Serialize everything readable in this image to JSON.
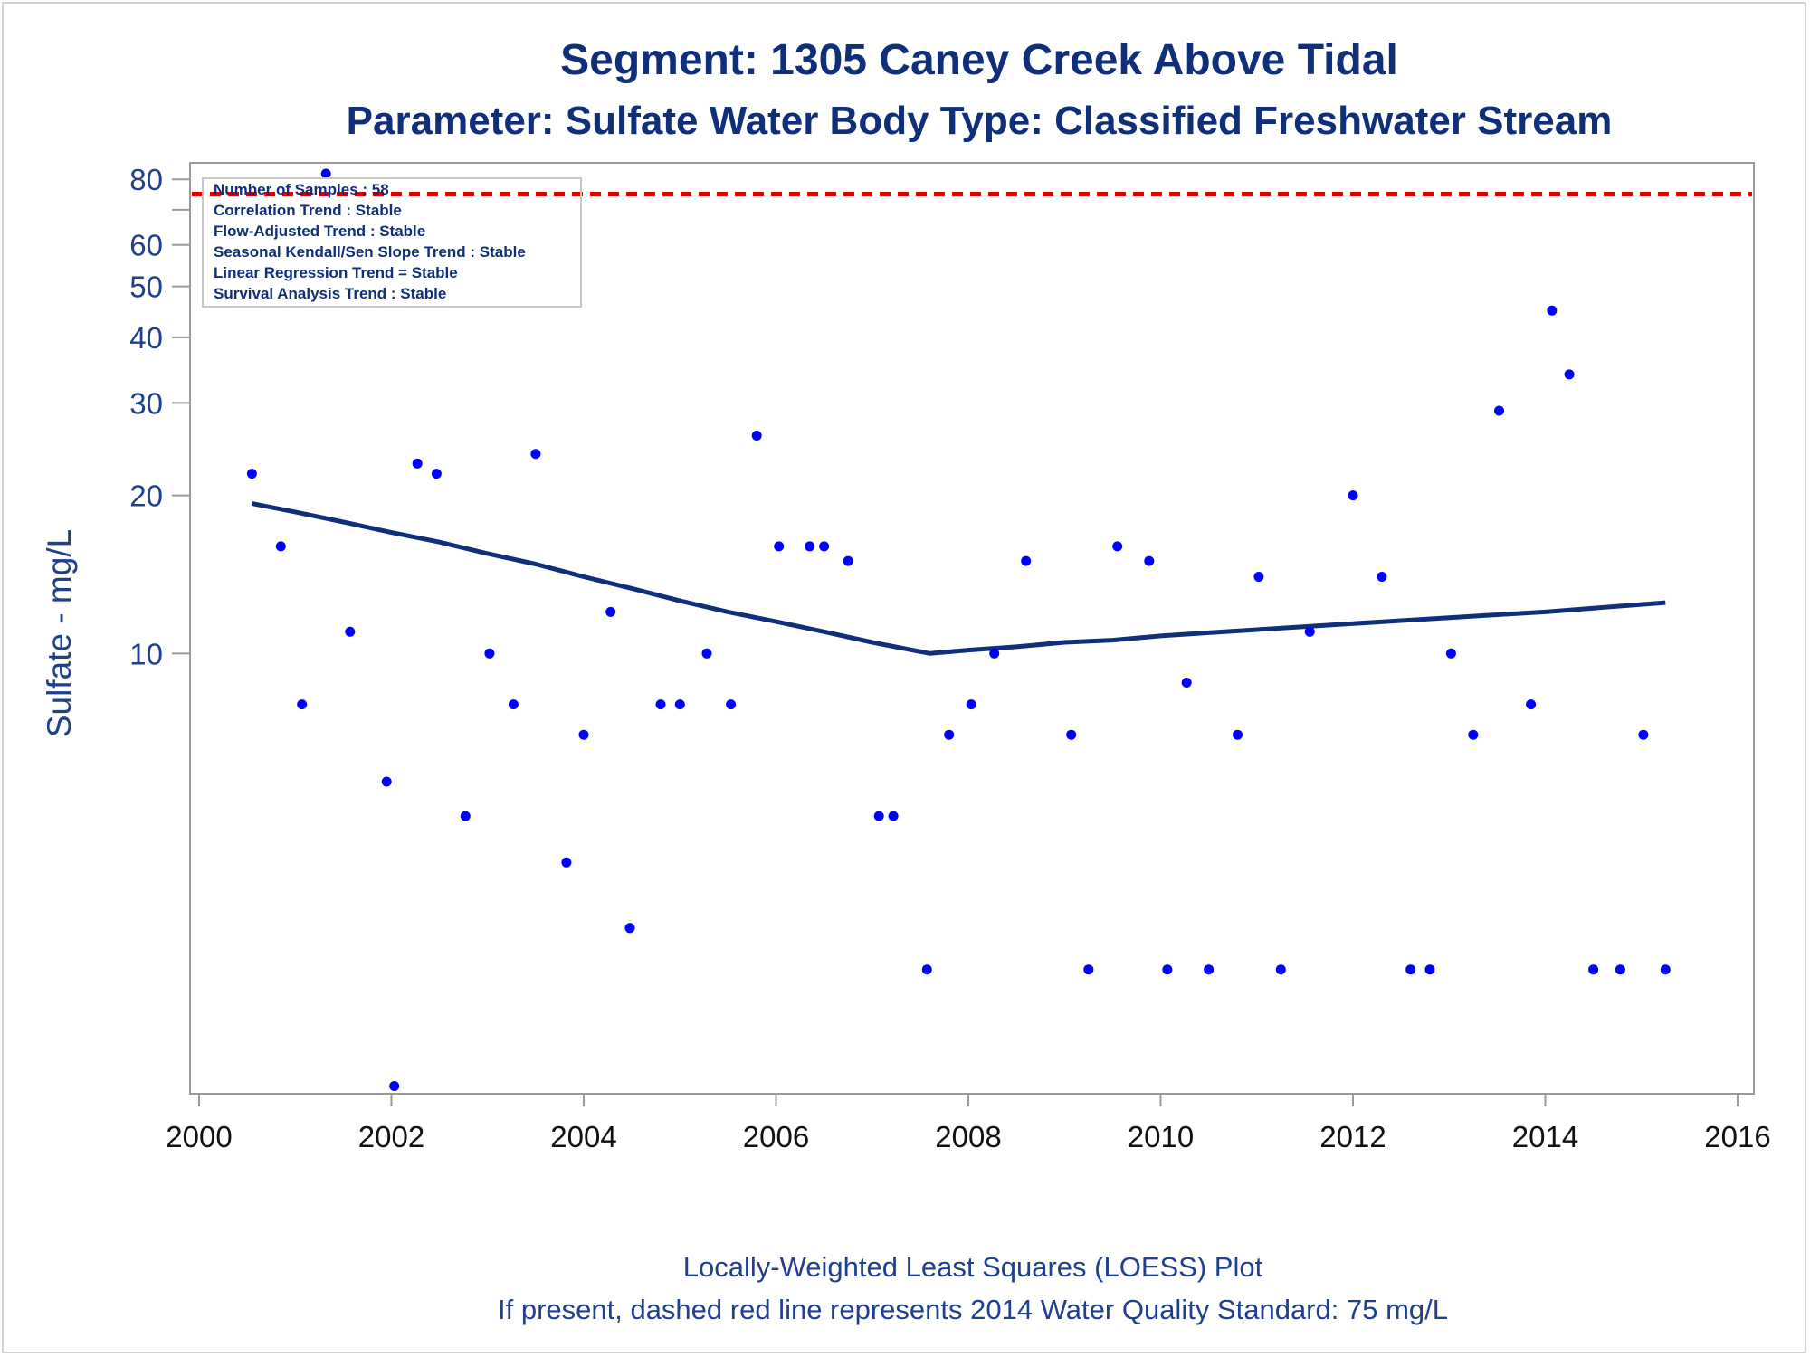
{
  "chart_data": {
    "type": "scatter",
    "title": "Segment: 1305  Caney Creek Above Tidal",
    "subtitle": "Parameter: Sulfate   Water Body Type: Classified Freshwater Stream",
    "xlabel": "",
    "ylabel": "Sulfate - mg/L",
    "yscale": "log",
    "xlim": [
      2000,
      2016
    ],
    "ylim": [
      1.45,
      86
    ],
    "x_ticks": [
      "2000",
      "2002",
      "2004",
      "2006",
      "2008",
      "2010",
      "2012",
      "2014",
      "2016"
    ],
    "y_ticks": [
      "80",
      "60",
      "50",
      "40",
      "30",
      "20",
      "10"
    ],
    "y_tick_values": [
      80,
      60,
      50,
      40,
      30,
      20,
      10
    ],
    "y_minor_ticks": [
      70
    ],
    "grid": false,
    "legend": "none",
    "stats_box": [
      "Number of Samples : 58",
      "Correlation Trend : Stable",
      "Flow-Adjusted Trend : Stable",
      "Seasonal Kendall/Sen Slope Trend : Stable",
      "Linear Regression Trend = Stable",
      "Survival Analysis Trend : Stable"
    ],
    "standard_line": {
      "value": 75,
      "color": "#e00000",
      "style": "dashed"
    },
    "series": [
      {
        "kind": "points",
        "color": "#0000ff",
        "points": [
          [
            2000.55,
            22
          ],
          [
            2000.85,
            16
          ],
          [
            2001.07,
            8
          ],
          [
            2001.32,
            82
          ],
          [
            2001.57,
            11
          ],
          [
            2001.95,
            5.7
          ],
          [
            2002.03,
            1.5
          ],
          [
            2002.27,
            23
          ],
          [
            2002.47,
            22
          ],
          [
            2002.77,
            4.9
          ],
          [
            2003.02,
            10
          ],
          [
            2003.27,
            8
          ],
          [
            2003.5,
            24
          ],
          [
            2003.82,
            4
          ],
          [
            2004.0,
            7
          ],
          [
            2004.28,
            12
          ],
          [
            2004.48,
            3
          ],
          [
            2004.8,
            8
          ],
          [
            2005.0,
            8
          ],
          [
            2005.28,
            10
          ],
          [
            2005.53,
            8
          ],
          [
            2005.8,
            26
          ],
          [
            2006.03,
            16
          ],
          [
            2006.35,
            16
          ],
          [
            2006.5,
            16
          ],
          [
            2006.75,
            15
          ],
          [
            2007.07,
            4.9
          ],
          [
            2007.22,
            4.9
          ],
          [
            2007.57,
            2.5
          ],
          [
            2007.8,
            7
          ],
          [
            2008.03,
            8
          ],
          [
            2008.27,
            10
          ],
          [
            2008.6,
            15
          ],
          [
            2009.07,
            7
          ],
          [
            2009.25,
            2.5
          ],
          [
            2009.55,
            16
          ],
          [
            2009.88,
            15
          ],
          [
            2010.07,
            2.5
          ],
          [
            2010.27,
            8.8
          ],
          [
            2010.5,
            2.5
          ],
          [
            2010.8,
            7
          ],
          [
            2011.02,
            14
          ],
          [
            2011.25,
            2.5
          ],
          [
            2011.55,
            11
          ],
          [
            2012.0,
            20
          ],
          [
            2012.3,
            14
          ],
          [
            2012.6,
            2.5
          ],
          [
            2012.8,
            2.5
          ],
          [
            2013.02,
            10
          ],
          [
            2013.25,
            7
          ],
          [
            2013.52,
            29
          ],
          [
            2013.85,
            8
          ],
          [
            2014.07,
            45
          ],
          [
            2014.25,
            34
          ],
          [
            2014.5,
            2.5
          ],
          [
            2014.78,
            2.5
          ],
          [
            2015.02,
            7
          ],
          [
            2015.25,
            2.5
          ]
        ]
      },
      {
        "kind": "loess",
        "color": "#0f2f7a",
        "points": [
          [
            2000.55,
            19.3
          ],
          [
            2001.0,
            18.6
          ],
          [
            2001.5,
            17.8
          ],
          [
            2002.0,
            17.0
          ],
          [
            2002.5,
            16.3
          ],
          [
            2003.0,
            15.5
          ],
          [
            2003.5,
            14.8
          ],
          [
            2004.0,
            14.0
          ],
          [
            2004.5,
            13.3
          ],
          [
            2005.0,
            12.6
          ],
          [
            2005.5,
            12.0
          ],
          [
            2006.0,
            11.5
          ],
          [
            2006.5,
            11.0
          ],
          [
            2007.0,
            10.5
          ],
          [
            2007.6,
            10.0
          ],
          [
            2008.0,
            10.15
          ],
          [
            2008.5,
            10.3
          ],
          [
            2009.0,
            10.5
          ],
          [
            2009.5,
            10.6
          ],
          [
            2010.0,
            10.8
          ],
          [
            2010.5,
            10.95
          ],
          [
            2011.0,
            11.1
          ],
          [
            2011.5,
            11.25
          ],
          [
            2012.0,
            11.4
          ],
          [
            2012.5,
            11.55
          ],
          [
            2013.0,
            11.7
          ],
          [
            2013.5,
            11.85
          ],
          [
            2014.0,
            12.0
          ],
          [
            2014.5,
            12.2
          ],
          [
            2015.0,
            12.4
          ],
          [
            2015.25,
            12.5
          ]
        ]
      }
    ]
  },
  "footer": {
    "line1": "Locally-Weighted Least Squares (LOESS) Plot",
    "line2": "If present, dashed red line represents 2014 Water Quality Standard: 75    mg/L"
  }
}
